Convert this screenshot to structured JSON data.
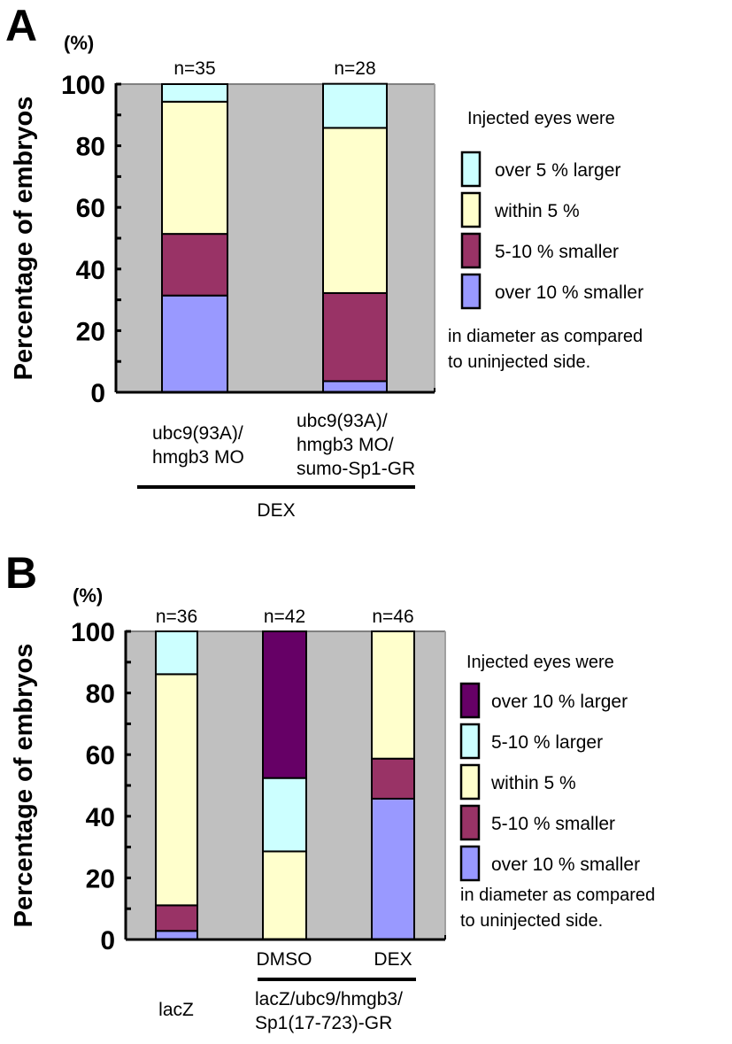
{
  "colors": {
    "plot_background": "#c0c0c0",
    "over_10_larger": "#660066",
    "over_5_larger": "#ccffff",
    "5_10_larger": "#ccffff",
    "within_5": "#ffffcc",
    "5_10_smaller": "#993366",
    "over_10_smaller": "#9999ff"
  },
  "chart_data": [
    {
      "panel": "A",
      "type": "bar",
      "stacked": true,
      "title": "",
      "unit_label": "(%)",
      "ylabel": "Percentage of embryos",
      "xlabel": "",
      "ylim": [
        0,
        100
      ],
      "yticks": [
        0,
        20,
        40,
        60,
        80,
        100
      ],
      "categories": [
        "ubc9(93A)/ hmgb3 MO",
        "ubc9(93A)/ hmgb3 MO/ sumo-Sp1-GR"
      ],
      "category_lines": [
        [
          "ubc9(93A)/",
          "hmgb3 MO"
        ],
        [
          "ubc9(93A)/",
          "hmgb3 MO/",
          "sumo-Sp1-GR"
        ]
      ],
      "n_labels": [
        "n=35",
        "n=28"
      ],
      "group_label": "DEX",
      "series": [
        {
          "name": "over 10 % smaller",
          "key": "over_10_smaller",
          "values": [
            31.4,
            3.6
          ]
        },
        {
          "name": "5-10 % smaller",
          "key": "5_10_smaller",
          "values": [
            20.0,
            28.6
          ]
        },
        {
          "name": "within 5 %",
          "key": "within_5",
          "values": [
            42.9,
            53.6
          ]
        },
        {
          "name": "over 5 % larger",
          "key": "over_5_larger",
          "values": [
            5.7,
            14.3
          ]
        }
      ],
      "legend": {
        "title": "Injected eyes were",
        "entries": [
          "over 5 % larger",
          "within 5 %",
          "5-10 % smaller",
          "over 10 % smaller"
        ],
        "keys": [
          "over_5_larger",
          "within_5",
          "5_10_smaller",
          "over_10_smaller"
        ],
        "note": [
          "in diameter as compared",
          "to uninjected side."
        ],
        "position": "right"
      },
      "grid": false
    },
    {
      "panel": "B",
      "type": "bar",
      "stacked": true,
      "title": "",
      "unit_label": "(%)",
      "ylabel": "Percentage of embryos",
      "xlabel": "",
      "ylim": [
        0,
        100
      ],
      "yticks": [
        0,
        20,
        40,
        60,
        80,
        100
      ],
      "categories": [
        "lacZ",
        "DMSO",
        "DEX"
      ],
      "n_labels": [
        "n=36",
        "n=42",
        "n=46"
      ],
      "group_label_lines": [
        "lacZ/ubc9/hmgb3/",
        "Sp1(17-723)-GR"
      ],
      "series": [
        {
          "name": "over 10 % smaller",
          "key": "over_10_smaller",
          "values": [
            2.8,
            0,
            45.7
          ]
        },
        {
          "name": "5-10 % smaller",
          "key": "5_10_smaller",
          "values": [
            8.3,
            0,
            13.0
          ]
        },
        {
          "name": "within 5 %",
          "key": "within_5",
          "values": [
            75.0,
            28.6,
            41.3
          ]
        },
        {
          "name": "5-10 % larger",
          "key": "5_10_larger",
          "values": [
            13.9,
            23.8,
            0
          ]
        },
        {
          "name": "over 10 % larger",
          "key": "over_10_larger",
          "values": [
            0,
            47.6,
            0
          ]
        }
      ],
      "legend": {
        "title": "Injected eyes were",
        "entries": [
          "over 10 % larger",
          "5-10 % larger",
          "within 5 %",
          "5-10 % smaller",
          "over 10 % smaller"
        ],
        "keys": [
          "over_10_larger",
          "5_10_larger",
          "within_5",
          "5_10_smaller",
          "over_10_smaller"
        ],
        "note": [
          "in diameter as compared",
          "to uninjected side."
        ],
        "position": "right"
      },
      "grid": false
    }
  ]
}
